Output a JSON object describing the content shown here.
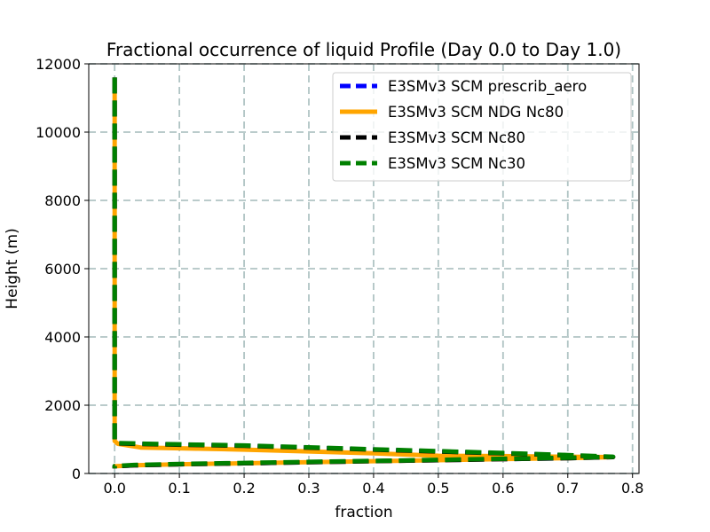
{
  "chart_data": {
    "type": "line",
    "title": "Fractional occurrence of liquid Profile (Day 0.0 to Day 1.0)",
    "xlabel": "fraction",
    "ylabel": "Height (m)",
    "xlim": [
      -0.04,
      0.81
    ],
    "ylim": [
      0,
      12000
    ],
    "xticks": [
      0.0,
      0.1,
      0.2,
      0.3,
      0.4,
      0.5,
      0.6,
      0.7,
      0.8
    ],
    "xtick_labels": [
      "0.0",
      "0.1",
      "0.2",
      "0.3",
      "0.4",
      "0.5",
      "0.6",
      "0.7",
      "0.8"
    ],
    "yticks": [
      0,
      2000,
      4000,
      6000,
      8000,
      10000,
      12000
    ],
    "ytick_labels": [
      "0",
      "2000",
      "4000",
      "6000",
      "8000",
      "10000",
      "12000"
    ],
    "grid": true,
    "legend_position": "top-right",
    "series": [
      {
        "name": "E3SMv3 SCM prescrib_aero",
        "color": "#0000ff",
        "style": "dashed",
        "x": [
          0,
          0,
          0,
          0.005,
          0.05,
          0.2,
          0.4,
          0.6,
          0.7,
          0.77,
          0.7,
          0.6,
          0.5,
          0.4,
          0.3,
          0.2,
          0.1,
          0.03,
          0,
          0
        ],
        "y": [
          11600,
          2000,
          950,
          880,
          860,
          810,
          700,
          590,
          530,
          480,
          450,
          420,
          390,
          360,
          330,
          300,
          270,
          240,
          210,
          150
        ]
      },
      {
        "name": "E3SMv3 SCM NDG Nc80",
        "color": "#ffa500",
        "style": "solid",
        "x": [
          0,
          0,
          0,
          0.005,
          0.04,
          0.2,
          0.4,
          0.5,
          0.6,
          0.7,
          0.77,
          0.7,
          0.6,
          0.5,
          0.4,
          0.3,
          0.2,
          0.1,
          0.03,
          0,
          0
        ],
        "y": [
          11600,
          2000,
          950,
          870,
          760,
          700,
          590,
          520,
          510,
          490,
          480,
          450,
          420,
          390,
          360,
          330,
          300,
          270,
          240,
          210,
          150
        ]
      },
      {
        "name": "E3SMv3 SCM Nc80",
        "color": "#000000",
        "style": "dashed",
        "x": [
          0,
          0,
          0,
          0.005,
          0.05,
          0.2,
          0.4,
          0.6,
          0.7,
          0.77,
          0.7,
          0.6,
          0.5,
          0.4,
          0.3,
          0.2,
          0.1,
          0.03,
          0,
          0
        ],
        "y": [
          11600,
          2000,
          950,
          880,
          860,
          810,
          700,
          590,
          530,
          480,
          450,
          420,
          390,
          360,
          330,
          300,
          270,
          240,
          210,
          150
        ]
      },
      {
        "name": "E3SMv3 SCM Nc30",
        "color": "#008000",
        "style": "dashed",
        "x": [
          0,
          0,
          0,
          0.005,
          0.05,
          0.2,
          0.4,
          0.6,
          0.7,
          0.77,
          0.7,
          0.6,
          0.5,
          0.4,
          0.3,
          0.2,
          0.1,
          0.03,
          0,
          0
        ],
        "y": [
          11600,
          2000,
          950,
          890,
          870,
          820,
          710,
          600,
          540,
          490,
          460,
          430,
          400,
          370,
          340,
          310,
          280,
          250,
          220,
          150
        ]
      }
    ]
  }
}
